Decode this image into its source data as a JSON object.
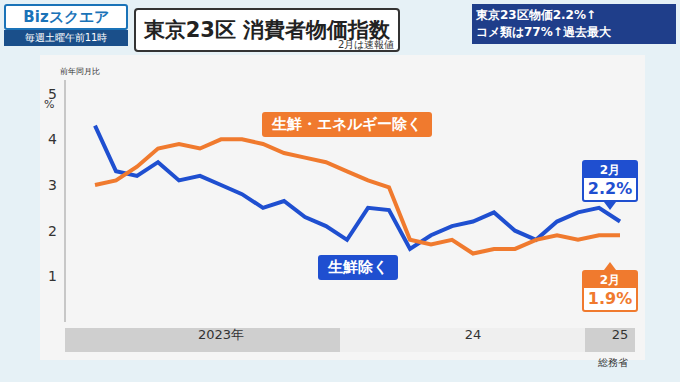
{
  "header": {
    "program": "Bizスクエア",
    "schedule": "毎週土曜午前11時",
    "headline": [
      "東京23区物価2.2%↑",
      "コメ類は77%↑過去最大"
    ]
  },
  "chart_data": {
    "type": "line",
    "title": "東京23区 消費者物価指数",
    "subtitle": "2月は速報値",
    "y_title": "前年同月比",
    "y_unit": "%",
    "source": "総務省",
    "categories": [
      null,
      null,
      null,
      null,
      null,
      null,
      "2023年",
      null,
      null,
      null,
      null,
      null,
      null,
      null,
      null,
      null,
      null,
      null,
      "24",
      null,
      null,
      null,
      null,
      null,
      null,
      "25"
    ],
    "series": [
      {
        "name": "生鮮除く",
        "color": "#1f4fd0",
        "values": [
          4.3,
          3.3,
          3.2,
          3.5,
          3.1,
          3.2,
          3.0,
          2.8,
          2.5,
          2.65,
          2.3,
          2.1,
          1.8,
          2.5,
          2.45,
          1.6,
          1.9,
          2.1,
          2.2,
          2.4,
          2.0,
          1.8,
          2.2,
          2.4,
          2.5,
          2.2
        ]
      },
      {
        "name": "生鮮・エネルギー除く",
        "color": "#f07a2e",
        "values": [
          3.0,
          3.1,
          3.4,
          3.8,
          3.9,
          3.8,
          4.0,
          4.0,
          3.9,
          3.7,
          3.6,
          3.5,
          3.3,
          3.1,
          2.95,
          1.8,
          1.7,
          1.8,
          1.5,
          1.6,
          1.6,
          1.8,
          1.9,
          1.8,
          1.9,
          1.9
        ]
      }
    ],
    "ylim": [
      0,
      5.3
    ],
    "yticks": [
      1,
      2,
      3,
      4,
      5
    ],
    "grid": false,
    "annotations": [
      {
        "series": "生鮮除く",
        "label": "2月",
        "text": "2.2%"
      },
      {
        "series": "生鮮・エネルギー除く",
        "label": "2月",
        "text": "1.9%"
      }
    ]
  }
}
